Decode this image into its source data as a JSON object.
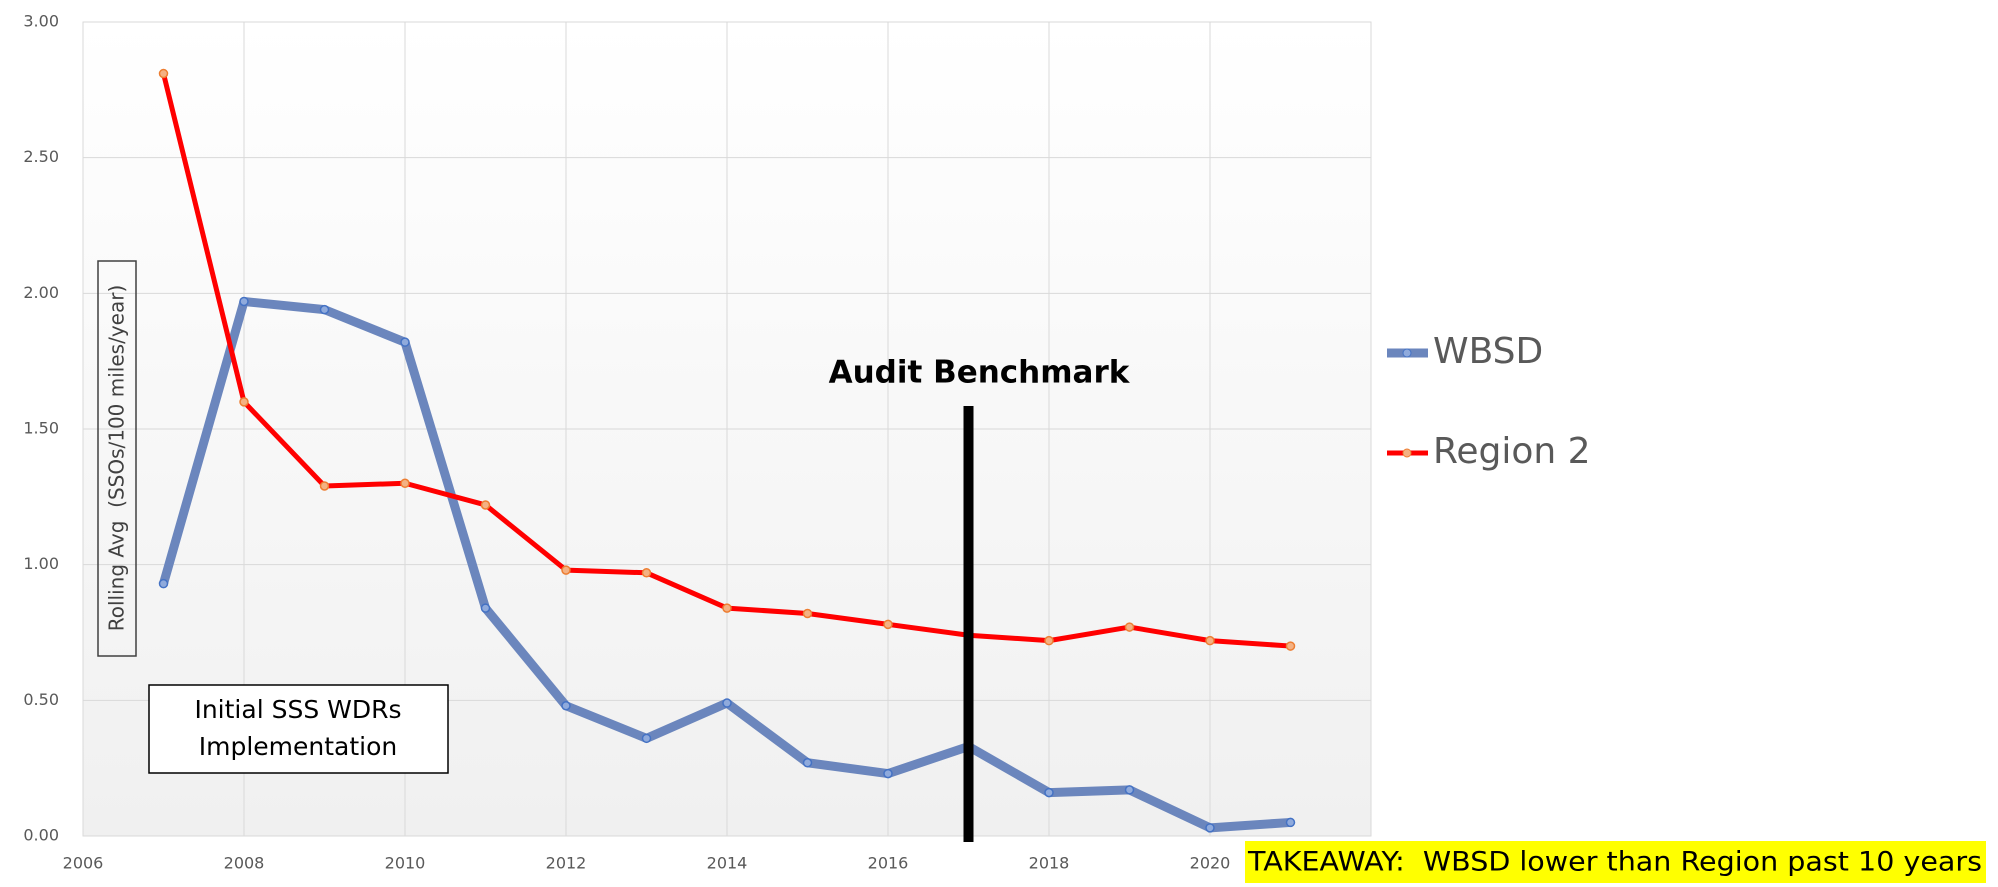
{
  "chart_data": {
    "type": "line",
    "y_label": "Rolling Avg  (SSOs/100 miles/year)",
    "x": [
      2007,
      2008,
      2009,
      2010,
      2011,
      2012,
      2013,
      2014,
      2015,
      2016,
      2017,
      2018,
      2019,
      2020,
      2021
    ],
    "series": [
      {
        "name": "WBSD",
        "color": "#6b86bd",
        "values": [
          0.93,
          1.97,
          1.94,
          1.82,
          0.84,
          0.48,
          0.36,
          0.49,
          0.27,
          0.23,
          0.33,
          0.16,
          0.17,
          0.03,
          0.05
        ]
      },
      {
        "name": "Region 2",
        "color": "#ff0000",
        "values": [
          2.81,
          1.6,
          1.29,
          1.3,
          1.22,
          0.98,
          0.97,
          0.84,
          0.82,
          0.78,
          0.74,
          0.72,
          0.77,
          0.72,
          0.7
        ]
      }
    ],
    "xlim": [
      2006,
      2022
    ],
    "xticks": [
      2006,
      2008,
      2010,
      2012,
      2014,
      2016,
      2018,
      2020
    ],
    "ylim": [
      0,
      3
    ],
    "yticks": [
      {
        "value": 0,
        "label": "0.00"
      },
      {
        "value": 0.5,
        "label": "0.50"
      },
      {
        "value": 1,
        "label": "1.00"
      },
      {
        "value": 1.5,
        "label": "1.50"
      },
      {
        "value": 2,
        "label": "2.00"
      },
      {
        "value": 2.5,
        "label": "2.50"
      },
      {
        "value": 3,
        "label": "3.00"
      }
    ],
    "grid": true,
    "legend": "right",
    "benchmark": {
      "label": "Audit Benchmark",
      "x": 2017
    },
    "note": [
      "Initial SSS WDRs",
      "Implementation"
    ],
    "takeaway": "TAKEAWAY:  WBSD lower than Region past 10 years"
  }
}
